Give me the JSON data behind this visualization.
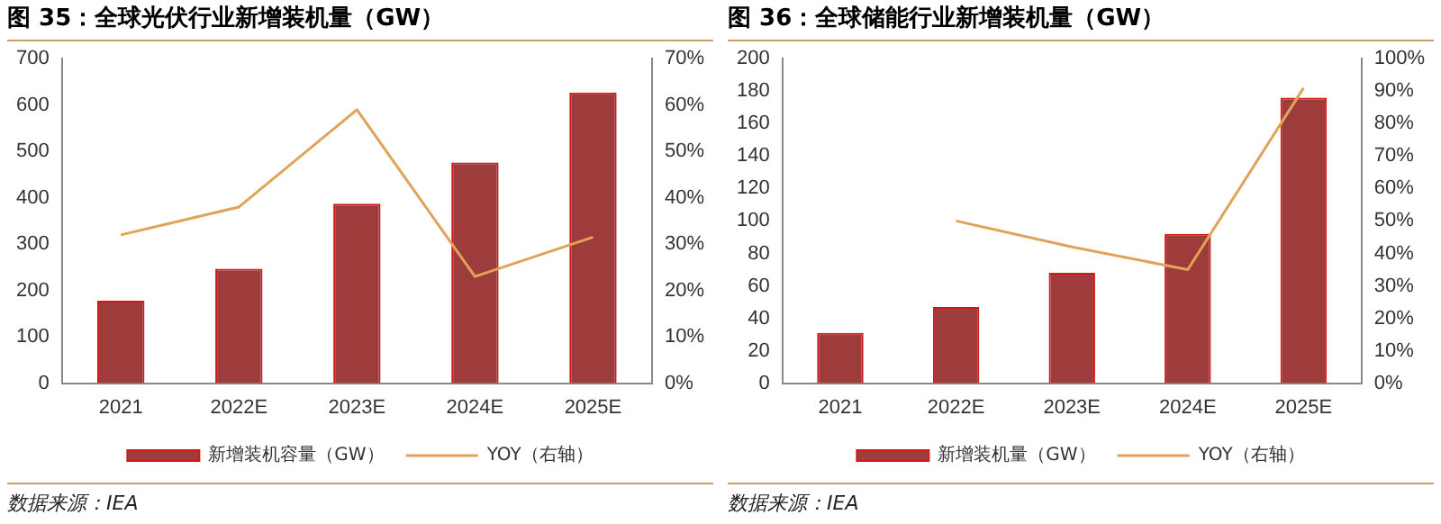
{
  "chart_data": [
    {
      "type": "bar",
      "title": "图 35：全球光伏行业新增装机量（GW）",
      "categories": [
        "2021",
        "2022E",
        "2023E",
        "2024E",
        "2025E"
      ],
      "series": [
        {
          "name": "新增装机容量（GW）",
          "color": "#9e3b3b",
          "values": [
            178,
            247,
            387,
            476,
            627
          ]
        },
        {
          "name": "YOY（右轴）",
          "type": "line",
          "axis": "y2",
          "color": "#e0a35a",
          "values": [
            32,
            38,
            59,
            23,
            31.5
          ]
        }
      ],
      "ylim": [
        0,
        700
      ],
      "yticks": [
        0,
        100,
        200,
        300,
        400,
        500,
        600,
        700
      ],
      "y2lim": [
        0,
        70
      ],
      "y2ticks": [
        {
          "value": 0,
          "label": "0%"
        },
        {
          "value": 10,
          "label": "10%"
        },
        {
          "value": 20,
          "label": "20%"
        },
        {
          "value": 30,
          "label": "30%"
        },
        {
          "value": 40,
          "label": "40%"
        },
        {
          "value": 50,
          "label": "50%"
        },
        {
          "value": 60,
          "label": "60%"
        },
        {
          "value": 70,
          "label": "70%"
        }
      ],
      "grid": false,
      "legend": "bottom",
      "marker": "none",
      "annotations": [
        "数据来源：IEA"
      ]
    },
    {
      "type": "bar",
      "title": "图 36：全球储能行业新增装机量（GW）",
      "categories": [
        "2021",
        "2022E",
        "2023E",
        "2024E",
        "2025E"
      ],
      "series": [
        {
          "name": "新增装机量（GW）",
          "color": "#9e3b3b",
          "values": [
            31,
            47,
            68,
            92,
            176
          ]
        },
        {
          "name": "YOY（右轴）",
          "type": "line",
          "axis": "y2",
          "color": "#e0a35a",
          "values": [
            null,
            50,
            42,
            35,
            91
          ]
        }
      ],
      "ylim": [
        0,
        200
      ],
      "yticks": [
        0,
        20,
        40,
        60,
        80,
        100,
        120,
        140,
        160,
        180,
        200
      ],
      "y2lim": [
        0,
        100
      ],
      "y2ticks": [
        {
          "value": 0,
          "label": "0%"
        },
        {
          "value": 10,
          "label": "10%"
        },
        {
          "value": 20,
          "label": "20%"
        },
        {
          "value": 30,
          "label": "30%"
        },
        {
          "value": 40,
          "label": "40%"
        },
        {
          "value": 50,
          "label": "50%"
        },
        {
          "value": 60,
          "label": "60%"
        },
        {
          "value": 70,
          "label": "70%"
        },
        {
          "value": 80,
          "label": "80%"
        },
        {
          "value": 90,
          "label": "90%"
        },
        {
          "value": 100,
          "label": "100%"
        }
      ],
      "grid": false,
      "legend": "bottom",
      "marker": "none",
      "annotations": [
        "数据来源：IEA"
      ]
    }
  ]
}
